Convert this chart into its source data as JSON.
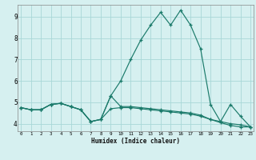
{
  "title": "",
  "xlabel": "Humidex (Indice chaleur)",
  "bg_color": "#d6f0f0",
  "grid_color": "#a8d8d8",
  "line_color": "#1a7a6a",
  "x_ticks": [
    0,
    1,
    2,
    3,
    4,
    5,
    6,
    7,
    8,
    9,
    10,
    11,
    12,
    13,
    14,
    15,
    16,
    17,
    18,
    19,
    20,
    21,
    22,
    23
  ],
  "y_ticks": [
    4,
    5,
    6,
    7,
    8,
    9
  ],
  "xlim": [
    -0.3,
    23.3
  ],
  "ylim": [
    3.65,
    9.55
  ],
  "series": [
    [
      4.75,
      4.65,
      4.65,
      4.9,
      4.95,
      4.8,
      4.65,
      4.1,
      4.2,
      5.3,
      6.0,
      7.0,
      7.9,
      8.6,
      9.2,
      8.6,
      9.3,
      8.6,
      7.5,
      4.9,
      4.1,
      4.9,
      4.35,
      3.85
    ],
    [
      4.75,
      4.65,
      4.65,
      4.9,
      4.95,
      4.8,
      4.65,
      4.1,
      4.2,
      5.3,
      4.8,
      4.8,
      4.75,
      4.7,
      4.65,
      4.6,
      4.55,
      4.5,
      4.4,
      4.2,
      4.1,
      4.0,
      3.95,
      3.85
    ],
    [
      4.75,
      4.65,
      4.65,
      4.9,
      4.95,
      4.8,
      4.65,
      4.1,
      4.2,
      4.7,
      4.75,
      4.75,
      4.7,
      4.65,
      4.6,
      4.55,
      4.5,
      4.45,
      4.35,
      4.2,
      4.05,
      3.92,
      3.85,
      3.85
    ]
  ]
}
